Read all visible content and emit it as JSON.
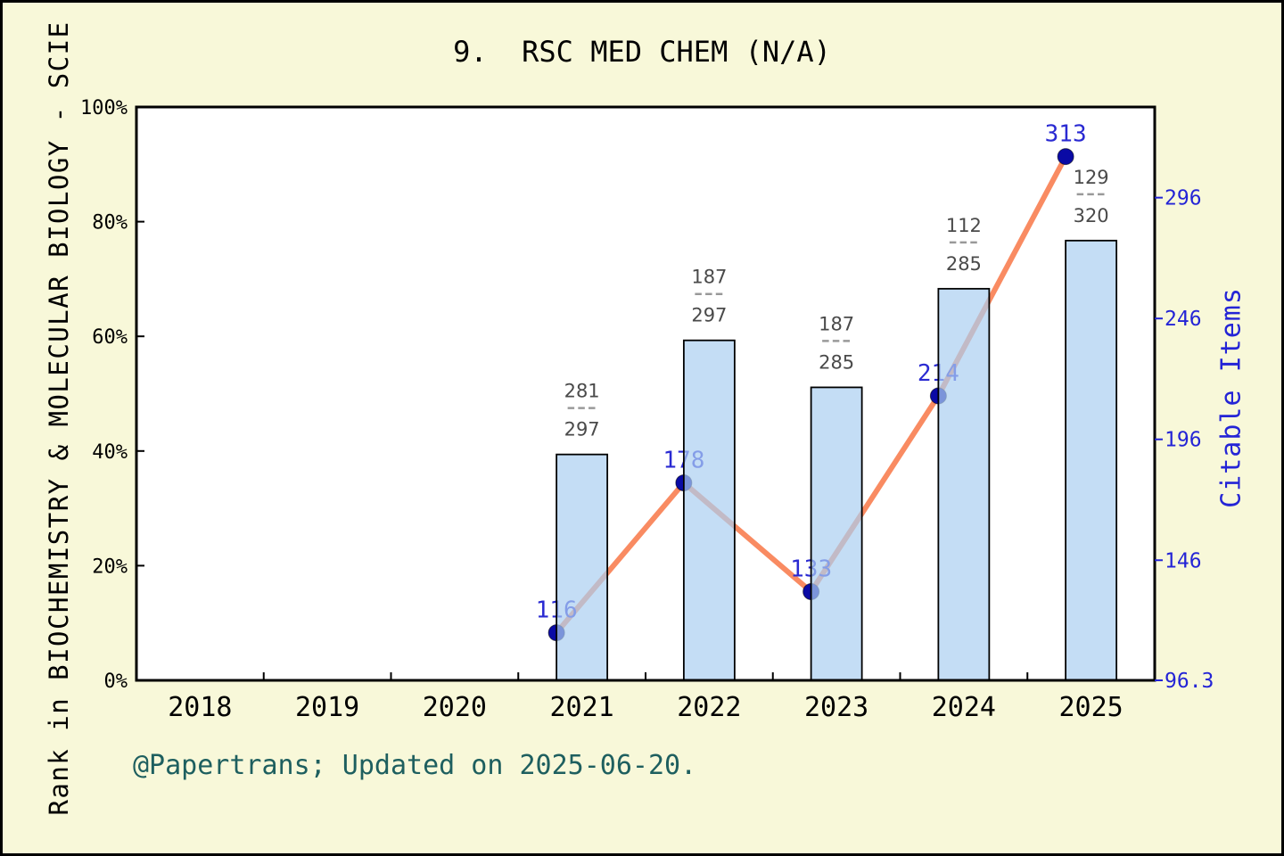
{
  "header": {
    "title": "9.  RSC MED CHEM (N/A)"
  },
  "footer": {
    "text": "@Papertrans; Updated on 2025-06-20."
  },
  "chart_data": {
    "type": "bar-line-combo",
    "title": "9.  RSC MED CHEM (N/A)",
    "years": [
      "2018",
      "2019",
      "2020",
      "2021",
      "2022",
      "2023",
      "2024",
      "2025"
    ],
    "left_axis": {
      "title": "Rank in BIOCHEMISTRY & MOLECULAR BIOLOGY - SCIE",
      "tick_labels": [
        "0%",
        "20%",
        "40%",
        "60%",
        "80%",
        "100%"
      ],
      "tick_values": [
        0,
        20,
        40,
        60,
        80,
        100
      ],
      "range": [
        0,
        100
      ],
      "grid": false
    },
    "right_axis": {
      "title": "Citable Items",
      "tick_labels": [
        "146",
        "196",
        "246",
        "296"
      ],
      "tick_values": [
        146,
        196,
        246,
        296
      ],
      "base_label": "96.3",
      "base_value": 96.3,
      "range": [
        96.3,
        333.5
      ]
    },
    "bars": [
      {
        "year": "2021",
        "height_percent": 39.4,
        "rank": "281",
        "total": "297"
      },
      {
        "year": "2022",
        "height_percent": 59.3,
        "rank": "187",
        "total": "297"
      },
      {
        "year": "2023",
        "height_percent": 51.1,
        "rank": "187",
        "total": "285"
      },
      {
        "year": "2024",
        "height_percent": 68.3,
        "rank": "112",
        "total": "285"
      },
      {
        "year": "2025",
        "height_percent": 76.7,
        "rank": "129",
        "total": "320"
      }
    ],
    "line": {
      "name": "Citable Items",
      "points": [
        {
          "year": "2021",
          "value": 116
        },
        {
          "year": "2022",
          "value": 178
        },
        {
          "year": "2023",
          "value": 133
        },
        {
          "year": "2024",
          "value": 214
        },
        {
          "year": "2025",
          "value": 313
        }
      ]
    },
    "colors": {
      "background": "#F8F8D9",
      "plot_background": "#FFFFFF",
      "bar_fill": "rgba(171,206,241,0.70)",
      "bar_stroke": "#000000",
      "line": "#F98B62",
      "dot": "#0A0AA5",
      "value_label": "#2A2AD2",
      "right_axis_text": "#2424D6",
      "fraction_text": "#4a4a4a",
      "fraction_dash": "#999999",
      "axis": "#000000"
    }
  }
}
